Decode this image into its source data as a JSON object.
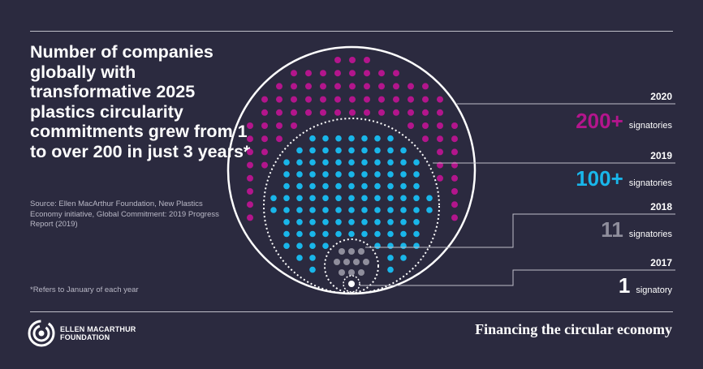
{
  "headline": "Number of companies globally with transformative 2025 plastics circularity commitments grew from 1 to over 200 in just 3 years*",
  "source": "Source: Ellen MacArthur Foundation, New Plastics Economy initiative, Global Commitment: 2019 Progress Report (2019)",
  "footnote": "*Refers to January of each year",
  "logo": {
    "line1": "ELLEN MACARTHUR",
    "line2": "FOUNDATION",
    "icon": "concentric-rings-icon"
  },
  "tagline": "Financing the circular economy",
  "legend": [
    {
      "year": "2020",
      "count": "200+",
      "label": "signatories",
      "color": "#b3158c"
    },
    {
      "year": "2019",
      "count": "100+",
      "label": "signatories",
      "color": "#19b6ea"
    },
    {
      "year": "2018",
      "count": "11",
      "label": "signatories",
      "color": "#8f8e9c"
    },
    {
      "year": "2017",
      "count": "1",
      "label": "signatory",
      "color": "#ffffff"
    }
  ],
  "colors": {
    "background": "#2b2a3f",
    "magenta": "#b3158c",
    "cyan": "#19b6ea",
    "grey": "#8f8e9c",
    "white": "#ffffff"
  }
}
